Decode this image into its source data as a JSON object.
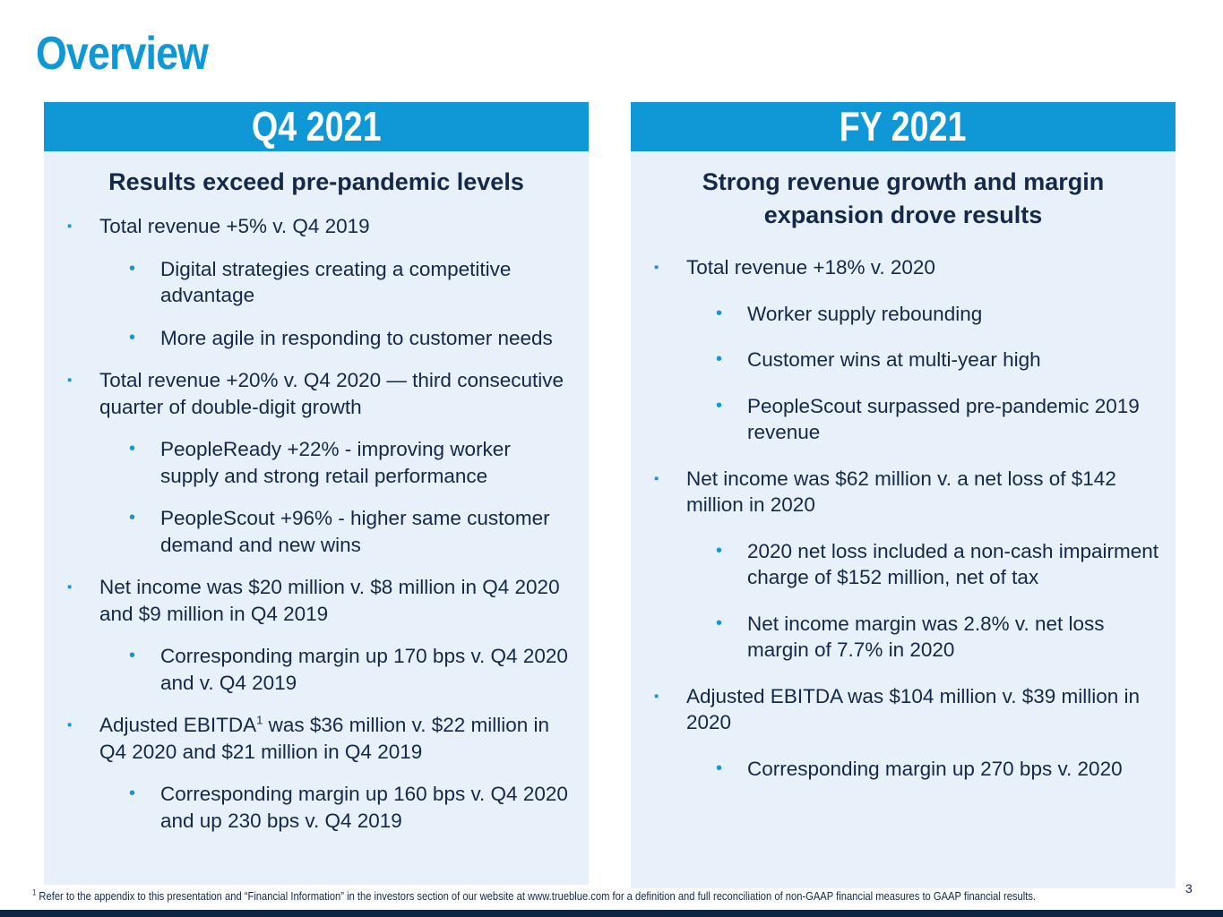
{
  "page": {
    "title": "Overview",
    "page_number": "3"
  },
  "left": {
    "banner": "Q4 2021",
    "heading": "Results exceed pre-pandemic levels",
    "items": [
      {
        "level": 1,
        "text": "Total revenue +5% v. Q4 2019"
      },
      {
        "level": 2,
        "text": "Digital strategies creating a competitive advantage"
      },
      {
        "level": 2,
        "text": "More agile in responding to customer needs"
      },
      {
        "level": 1,
        "text": "Total revenue +20% v. Q4 2020 — third consecutive quarter of double-digit growth"
      },
      {
        "level": 2,
        "text": "PeopleReady +22% - improving worker supply and strong retail performance"
      },
      {
        "level": 2,
        "text": "PeopleScout +96% - higher same customer demand and new wins"
      },
      {
        "level": 1,
        "text": "Net income was $20 million v. $8 million in Q4 2020 and $9 million in Q4 2019"
      },
      {
        "level": 2,
        "text": "Corresponding margin up 170 bps v. Q4 2020 and v. Q4 2019"
      },
      {
        "level": 1,
        "text": "Adjusted EBITDA",
        "sup": "1",
        "text_after": " was $36 million v. $22 million in Q4 2020 and $21 million in Q4 2019"
      },
      {
        "level": 2,
        "text": "Corresponding margin up 160 bps v. Q4 2020 and up 230 bps v. Q4 2019"
      }
    ]
  },
  "right": {
    "banner": "FY 2021",
    "heading": "Strong revenue growth and margin expansion drove results",
    "items": [
      {
        "level": 1,
        "text": "Total revenue +18% v. 2020"
      },
      {
        "level": 2,
        "text": "Worker supply rebounding"
      },
      {
        "level": 2,
        "text": "Customer wins at multi-year high"
      },
      {
        "level": 2,
        "text": "PeopleScout surpassed pre-pandemic 2019 revenue"
      },
      {
        "level": 1,
        "text": "Net income was $62 million v. a net loss of $142 million in 2020"
      },
      {
        "level": 2,
        "text": "2020 net loss included a non-cash impairment charge of $152 million, net of tax"
      },
      {
        "level": 2,
        "text": "Net income margin was 2.8% v. net loss margin of 7.7% in 2020"
      },
      {
        "level": 1,
        "text": "Adjusted EBITDA was $104 million v. $39 million in 2020"
      },
      {
        "level": 2,
        "text": "Corresponding margin up 270 bps v. 2020"
      }
    ]
  },
  "footnote": {
    "marker": "1",
    "text": " Refer to the appendix to this presentation and “Financial Information” in the investors section of our website at www.trueblue.com for a definition and full reconciliation of non-GAAP financial measures to GAAP financial results."
  },
  "markers": {
    "level1": "▪",
    "level2": "•"
  },
  "colors": {
    "accent": "#0f97d6",
    "text": "#14284b",
    "panel": "#e8f0f9",
    "bar": "#0f2440"
  }
}
